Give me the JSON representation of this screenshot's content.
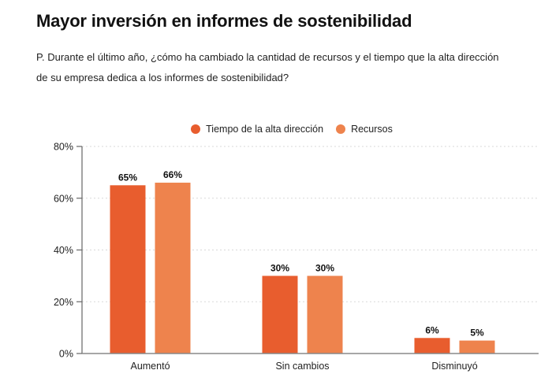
{
  "header": {
    "title": "Mayor inversión en informes de sostenibilidad",
    "subtitle": "P. Durante el último año, ¿cómo ha cambiado la cantidad de recursos y el tiempo que la alta dirección de su empresa dedica a los informes de sostenibilidad?"
  },
  "legend": [
    {
      "label": "Tiempo de la alta dirección",
      "color": "#E85D2E"
    },
    {
      "label": "Recursos",
      "color": "#EE834D"
    }
  ],
  "chart_data": {
    "type": "bar",
    "title": "Mayor inversión en informes de sostenibilidad",
    "xlabel": "",
    "ylabel": "",
    "categories": [
      "Aumentó",
      "Sin cambios",
      "Disminuyó"
    ],
    "series": [
      {
        "name": "Tiempo de la alta dirección",
        "values": [
          65,
          30,
          6
        ],
        "labels": [
          "65%",
          "30%",
          "6%"
        ],
        "color": "#E85D2E"
      },
      {
        "name": "Recursos",
        "values": [
          66,
          30,
          5
        ],
        "labels": [
          "66%",
          "30%",
          "5%"
        ],
        "color": "#EE834D"
      }
    ],
    "ylim": [
      0,
      80
    ],
    "yticks": [
      0,
      20,
      40,
      60,
      80
    ],
    "ytick_labels": [
      "0%",
      "20%",
      "40%",
      "60%",
      "80%"
    ],
    "grid": true,
    "legend_position": "top-center"
  }
}
